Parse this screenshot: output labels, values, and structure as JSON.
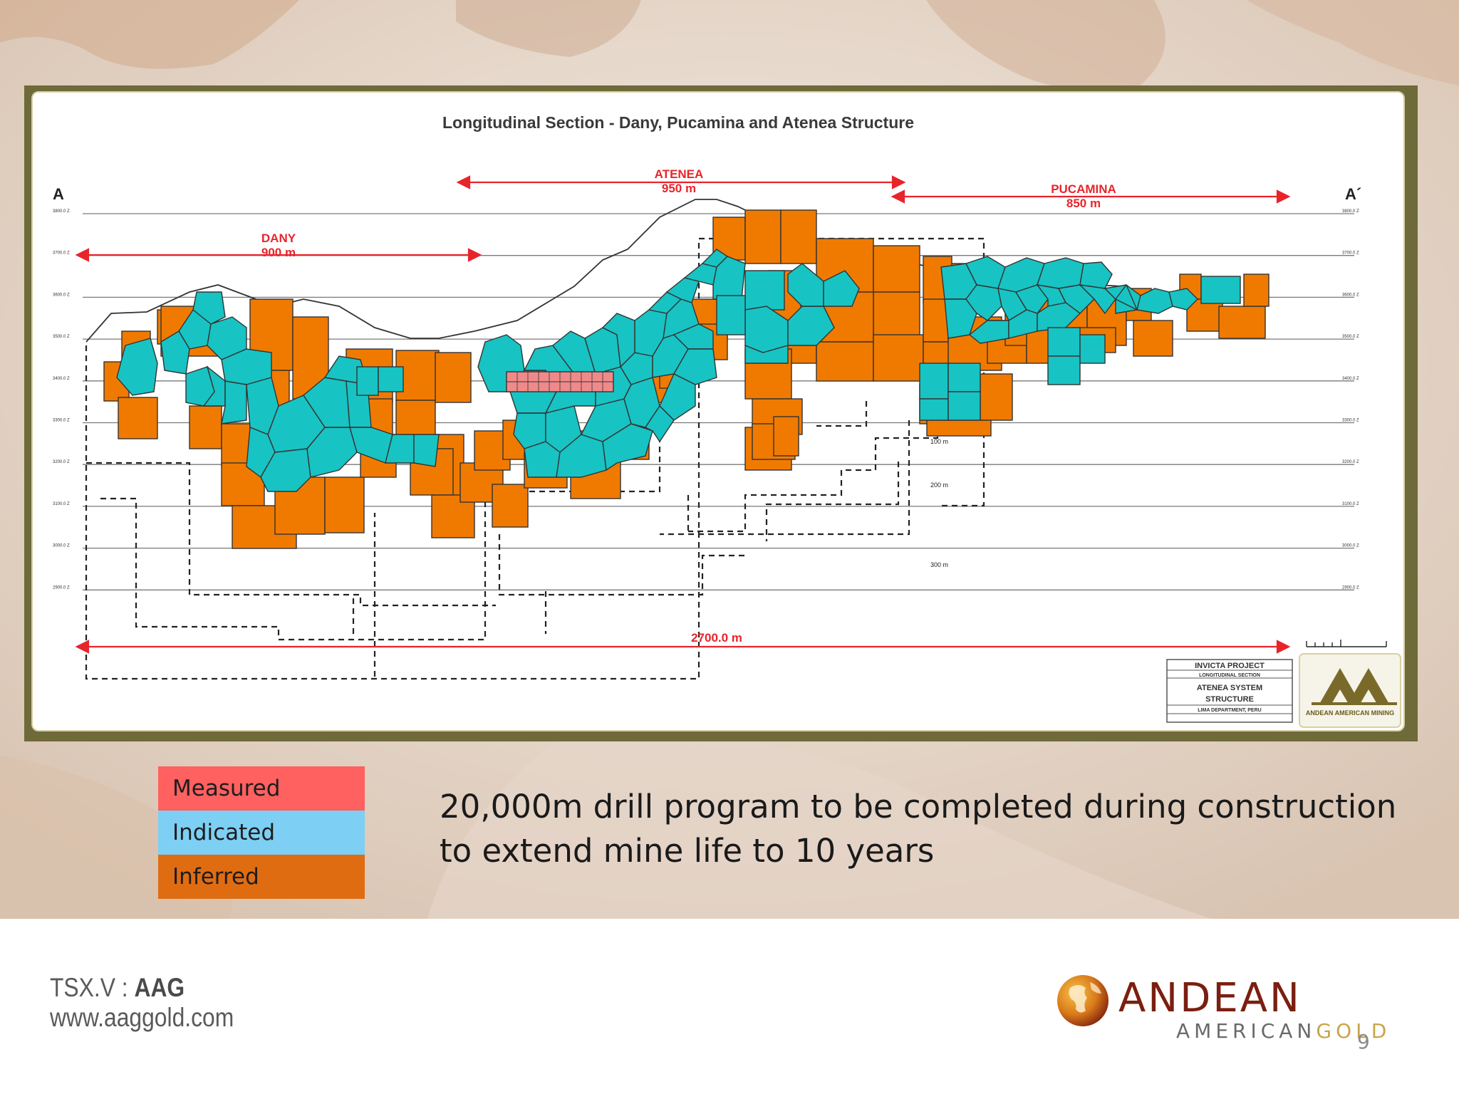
{
  "diagram": {
    "title": "Longitudinal Section - Dany, Pucamina and Atenea Structure",
    "left_marker": "A",
    "right_marker": "A´",
    "zones": [
      {
        "name": "DANY",
        "length": "900 m"
      },
      {
        "name": "ATENEA",
        "length": "950 m"
      },
      {
        "name": "PUCAMINA",
        "length": "850 m"
      }
    ],
    "total_length": "2700.0  m",
    "depth_labels": [
      "100 m",
      "200 m",
      "300 m"
    ],
    "elevation_labels": [
      "3800.0 Z",
      "3700.0 Z",
      "3600.0 Z",
      "3500.0 Z",
      "3400.0 Z",
      "3300.0 Z",
      "3200.0 Z",
      "3100.0 Z",
      "3000.0 Z",
      "2900.0 Z"
    ],
    "title_block": {
      "project": "INVICTA PROJECT",
      "section": "LONGITUDINAL SECTION",
      "system": "ATENEA SYSTEM",
      "structure": "STRUCTURE",
      "location": "LIMA DEPARTMENT, PERU"
    },
    "stamp_text": "ANDEAN AMERICAN MINING",
    "colors": {
      "measured": "#f08a8a",
      "indicated": "#18c3c3",
      "inferred": "#f07a00"
    }
  },
  "legend": [
    {
      "label": "Measured",
      "color": "#ff6060"
    },
    {
      "label": "Indicated",
      "color": "#7dcff4"
    },
    {
      "label": "Inferred",
      "color": "#e06c12"
    }
  ],
  "caption": "20,000m drill program to be completed during construction to extend mine life to 10 years",
  "footer": {
    "ticker_prefix": "TSX.V : ",
    "ticker_symbol": "AAG",
    "website": "www.aaggold.com",
    "brand_line1": "ANDEAN",
    "brand_line2a": "AMERICAN",
    "brand_line2b": "GOLD",
    "page_number": "9"
  }
}
